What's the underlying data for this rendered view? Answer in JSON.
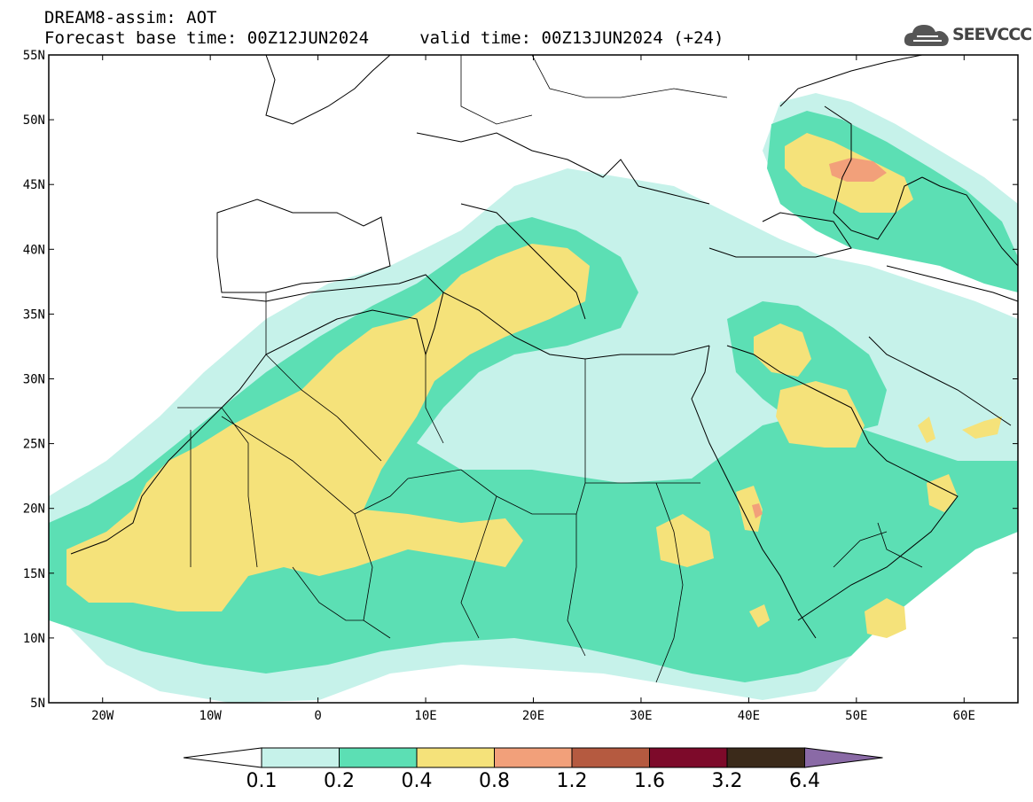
{
  "header": {
    "line1": "DREAM8-assim: AOT",
    "line2": "Forecast base time: 00Z12JUN2024     valid time: 00Z13JUN2024 (+24)"
  },
  "logo": {
    "text": "SEEVCCC",
    "icon": "cloud-icon",
    "color": "#555555"
  },
  "map": {
    "projection": "lat-lon",
    "lon_range": [
      -25,
      65
    ],
    "lat_range": [
      5,
      55
    ],
    "lon_ticks": [
      "20W",
      "10W",
      "0",
      "10E",
      "20E",
      "30E",
      "40E",
      "50E",
      "60E"
    ],
    "lat_ticks": [
      "55N",
      "50N",
      "45N",
      "40N",
      "35N",
      "30N",
      "25N",
      "20N",
      "15N",
      "10N",
      "5N"
    ],
    "field": "AOT"
  },
  "colorbar": {
    "labels": [
      "0.1",
      "0.2",
      "0.4",
      "0.8",
      "1.2",
      "1.6",
      "3.2",
      "6.4"
    ],
    "colors": [
      "#c6f2ea",
      "#5cdfb4",
      "#f5e27a",
      "#f2a07a",
      "#b55a40",
      "#7d0a2a",
      "#3b2a1a",
      "#8a6aa6"
    ],
    "under_color": "#ffffff"
  }
}
